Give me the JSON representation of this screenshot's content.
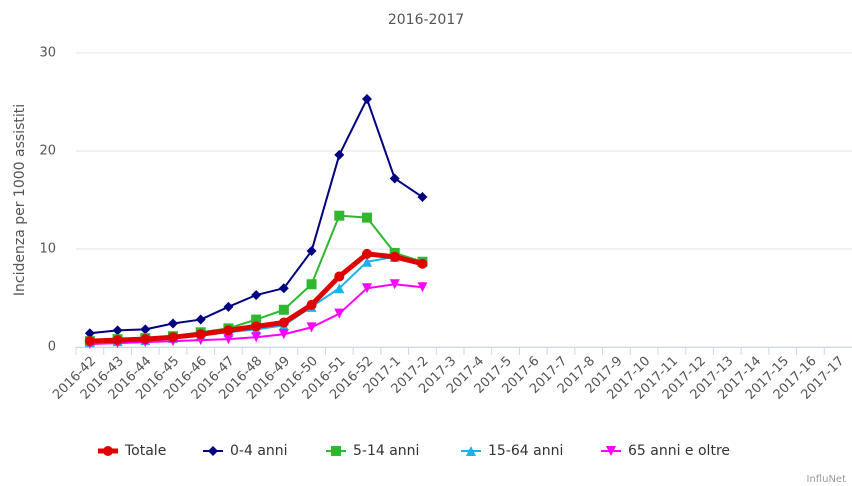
{
  "chart_data": {
    "type": "line",
    "title": "2016-2017",
    "y_label": "Incidenza per 1000 assistiti",
    "credit": "InfluNet",
    "categories": [
      "2016-42",
      "2016-43",
      "2016-44",
      "2016-45",
      "2016-46",
      "2016-47",
      "2016-48",
      "2016-49",
      "2016-50",
      "2016-51",
      "2016-52",
      "2017-1",
      "2017-2",
      "2017-3",
      "2017-4",
      "2017-5",
      "2017-6",
      "2017-7",
      "2017-8",
      "2017-9",
      "2017-10",
      "2017-11",
      "2017-12",
      "2017-13",
      "2017-14",
      "2017-15",
      "2017-16",
      "2017-17"
    ],
    "series": [
      {
        "name": "Totale",
        "color": "#e00000",
        "marker": "circle",
        "values": [
          0.6,
          0.7,
          0.8,
          1.0,
          1.3,
          1.7,
          2.1,
          2.5,
          4.3,
          7.2,
          9.5,
          9.2,
          8.5,
          null,
          null,
          null,
          null,
          null,
          null,
          null,
          null,
          null,
          null,
          null,
          null,
          null,
          null,
          null
        ]
      },
      {
        "name": "0-4 anni",
        "color": "#000080",
        "marker": "diamond",
        "values": [
          1.4,
          1.7,
          1.8,
          2.4,
          2.8,
          4.1,
          5.3,
          6.0,
          9.8,
          19.6,
          25.3,
          17.2,
          15.3,
          null,
          null,
          null,
          null,
          null,
          null,
          null,
          null,
          null,
          null,
          null,
          null,
          null,
          null,
          null
        ]
      },
      {
        "name": "5-14 anni",
        "color": "#2db82d",
        "marker": "square",
        "values": [
          0.6,
          0.8,
          0.9,
          1.1,
          1.5,
          1.9,
          2.8,
          3.8,
          6.4,
          13.4,
          13.2,
          9.6,
          8.7,
          null,
          null,
          null,
          null,
          null,
          null,
          null,
          null,
          null,
          null,
          null,
          null,
          null,
          null,
          null
        ]
      },
      {
        "name": "15-64 anni",
        "color": "#1ab2e8",
        "marker": "triangle-up",
        "values": [
          0.5,
          0.6,
          0.7,
          0.9,
          1.2,
          1.5,
          1.8,
          2.2,
          4.1,
          6.0,
          8.7,
          9.2,
          8.7,
          null,
          null,
          null,
          null,
          null,
          null,
          null,
          null,
          null,
          null,
          null,
          null,
          null,
          null,
          null
        ]
      },
      {
        "name": "65 anni e oltre",
        "color": "#ff00ff",
        "marker": "triangle-down",
        "values": [
          0.3,
          0.4,
          0.5,
          0.6,
          0.7,
          0.8,
          1.0,
          1.3,
          2.0,
          3.4,
          6.0,
          6.4,
          6.1,
          null,
          null,
          null,
          null,
          null,
          null,
          null,
          null,
          null,
          null,
          null,
          null,
          null,
          null,
          null
        ]
      }
    ],
    "ylim": [
      0,
      30
    ],
    "yticks": [
      0,
      10,
      20,
      30
    ],
    "grid": true
  }
}
